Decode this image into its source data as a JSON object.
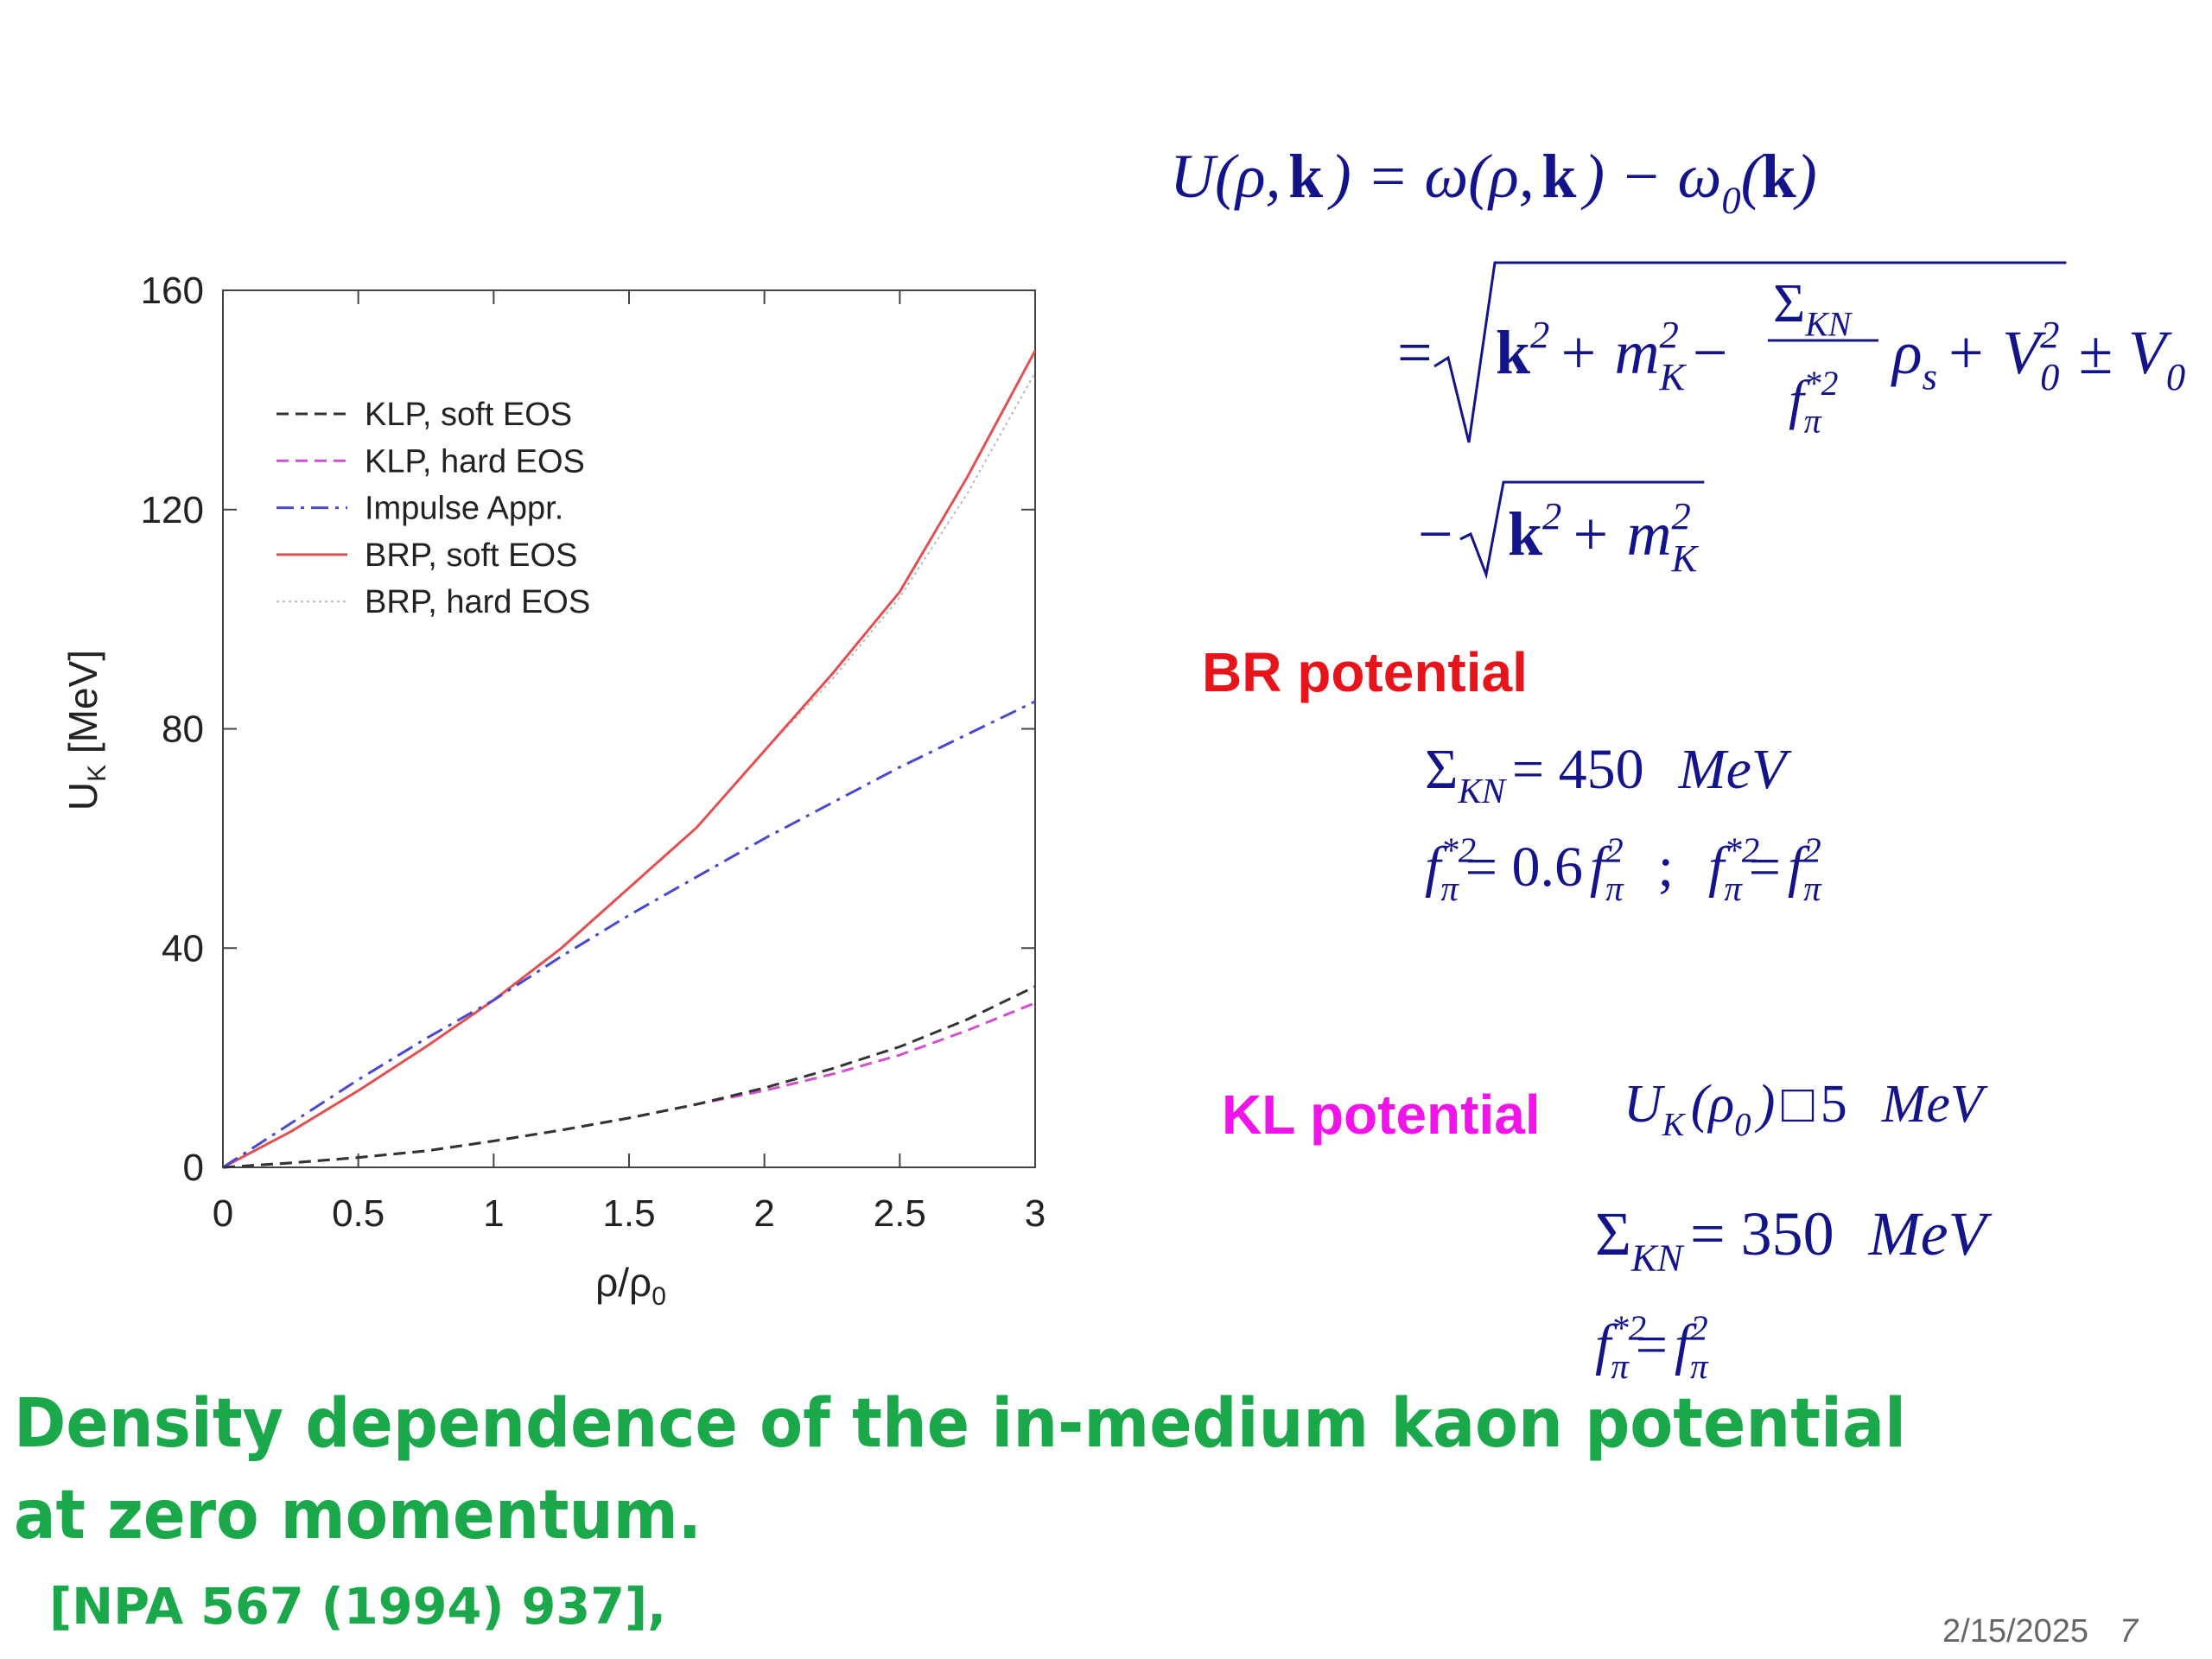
{
  "chart_data": {
    "type": "line",
    "x_label": {
      "text": "ρ/ρ",
      "sub": "0"
    },
    "y_label": {
      "text": "U",
      "sub": "K",
      "suffix": " [MeV]"
    },
    "x": [
      0,
      0.25,
      0.5,
      0.75,
      1,
      1.25,
      1.5,
      1.75,
      2,
      2.25,
      2.5,
      2.75,
      3
    ],
    "series": [
      {
        "name": "KLP, soft EOS",
        "color": "#333333",
        "style": "dashed",
        "values": [
          0,
          0.8,
          1.8,
          3,
          4.8,
          6.8,
          9,
          11.5,
          14.5,
          18,
          22,
          27,
          33
        ]
      },
      {
        "name": "KLP, hard EOS",
        "color": "#d050d0",
        "style": "dashed",
        "values": [
          0,
          0.8,
          1.8,
          3,
          4.8,
          6.8,
          9,
          11.5,
          14,
          17,
          20.5,
          25,
          30
        ]
      },
      {
        "name": "Impulse Appr.",
        "color": "#4848d0",
        "style": "dashdot",
        "values": [
          0,
          8,
          16,
          23.5,
          30.5,
          38.5,
          46,
          53,
          60,
          66.5,
          73,
          79,
          85
        ]
      },
      {
        "name": "BRP, soft EOS",
        "color": "#e05050",
        "style": "solid",
        "values": [
          0,
          6.5,
          14,
          22,
          30.5,
          40,
          51,
          62,
          76,
          90,
          105,
          126,
          149
        ]
      },
      {
        "name": "BRP, hard EOS",
        "color": "#b8b8b8",
        "style": "dotted",
        "values": [
          0,
          6.5,
          14,
          22,
          30.5,
          40,
          51,
          62,
          76,
          89,
          104,
          123,
          145
        ]
      }
    ],
    "xlim": [
      0,
      3
    ],
    "ylim": [
      0,
      160
    ],
    "xticks": [
      0,
      0.5,
      1,
      1.5,
      2,
      2.5,
      3
    ],
    "yticks": [
      0,
      40,
      80,
      120,
      160
    ],
    "legend": "upper left"
  },
  "formulas": {
    "line1": [
      "U(ρ,",
      "k",
      ") = ω(ρ,",
      "k",
      ") − ω",
      "0",
      "(",
      "k",
      ")"
    ],
    "line2": [
      "=",
      "k",
      "2",
      "+ m",
      "2",
      "K",
      "−",
      "Σ",
      "KN",
      "f",
      "*2",
      "π",
      "ρ",
      "s",
      "+ V",
      "2",
      "0",
      "± V",
      "0"
    ],
    "line3": [
      "−",
      "k",
      "2",
      "+ m",
      "2",
      "K"
    ]
  },
  "br": {
    "label": "BR potential",
    "line1": [
      "Σ",
      "KN",
      "= 450",
      "MeV"
    ],
    "line2": [
      "f",
      "*2",
      "π",
      "= 0.6",
      "f",
      "2",
      "π",
      ";",
      "f",
      "*2",
      "π",
      "=",
      "f",
      "2",
      "π"
    ]
  },
  "kl": {
    "label": "KL potential",
    "line1": [
      "U",
      "K",
      "(ρ",
      "0",
      ")",
      "□",
      "5",
      "MeV"
    ],
    "line2": [
      "Σ",
      "KN",
      "= 350",
      "MeV"
    ],
    "line3": [
      "f",
      "*2",
      "π",
      "=",
      "f",
      "2",
      "π"
    ]
  },
  "caption": {
    "line1": "Density dependence of the in-medium kaon potential",
    "line2": "at zero momentum.",
    "reference": "[NPA 567 (1994) 937],"
  },
  "footer": {
    "date": "2/15/2025",
    "page": "7"
  }
}
